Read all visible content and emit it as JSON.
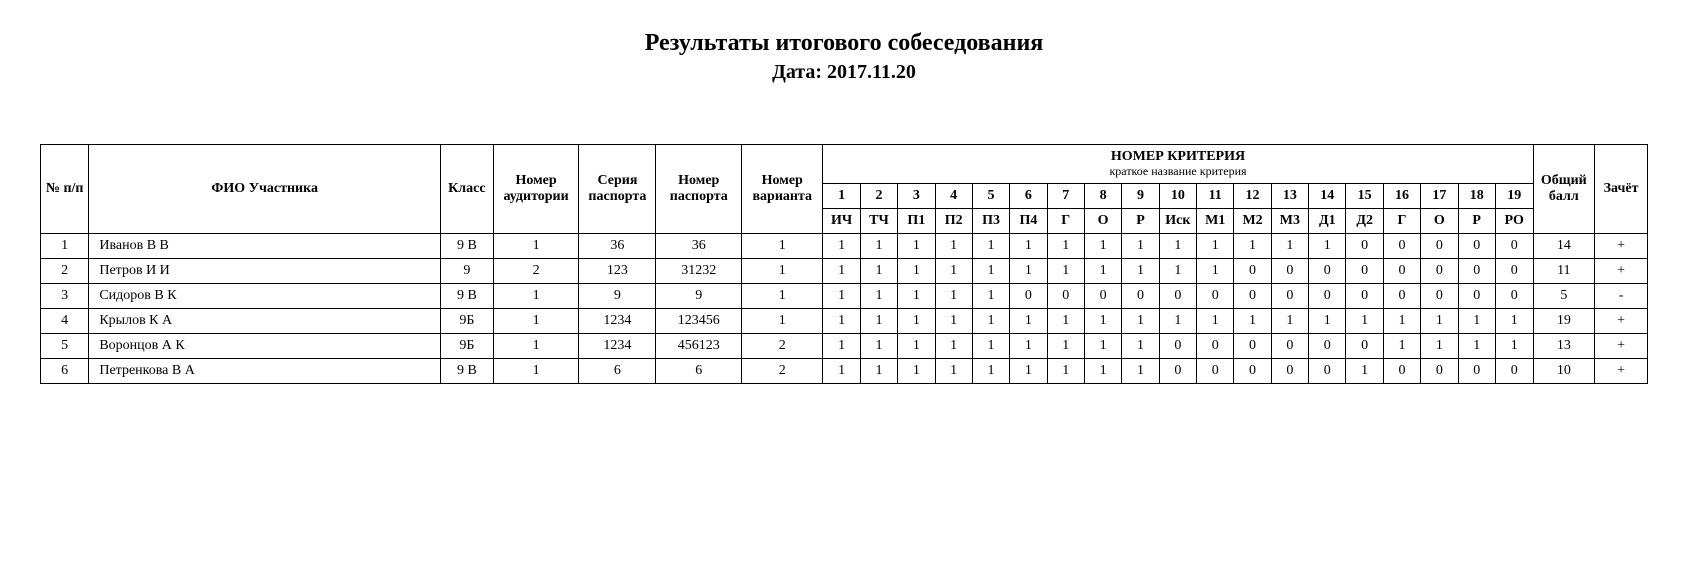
{
  "title": "Результаты итогового собеседования",
  "date_label": "Дата: 2017.11.20",
  "headers": {
    "num": "№ п/п",
    "fio": "ФИО Участника",
    "klass": "Класс",
    "room": "Номер аудитории",
    "pass_ser": "Серия паспорта",
    "pass_num": "Номер паспорта",
    "variant": "Номер варианта",
    "crit_title": "НОМЕР КРИТЕРИЯ",
    "crit_sub": "краткое название критерия",
    "total": "Общий балл",
    "pass": "Зачёт"
  },
  "crit_nums": [
    "1",
    "2",
    "3",
    "4",
    "5",
    "6",
    "7",
    "8",
    "9",
    "10",
    "11",
    "12",
    "13",
    "14",
    "15",
    "16",
    "17",
    "18",
    "19"
  ],
  "crit_names": [
    "ИЧ",
    "ТЧ",
    "П1",
    "П2",
    "П3",
    "П4",
    "Г",
    "О",
    "Р",
    "Иск",
    "М1",
    "М2",
    "М3",
    "Д1",
    "Д2",
    "Г",
    "О",
    "Р",
    "РО"
  ],
  "rows": [
    {
      "n": "1",
      "fio": "Иванов В В",
      "klass": "9 В",
      "room": "1",
      "ser": "36",
      "pnum": "36",
      "var": "1",
      "c": [
        "1",
        "1",
        "1",
        "1",
        "1",
        "1",
        "1",
        "1",
        "1",
        "1",
        "1",
        "1",
        "1",
        "1",
        "0",
        "0",
        "0",
        "0",
        "0"
      ],
      "total": "14",
      "pass": "+"
    },
    {
      "n": "2",
      "fio": "Петров И И",
      "klass": "9",
      "room": "2",
      "ser": "123",
      "pnum": "31232",
      "var": "1",
      "c": [
        "1",
        "1",
        "1",
        "1",
        "1",
        "1",
        "1",
        "1",
        "1",
        "1",
        "1",
        "0",
        "0",
        "0",
        "0",
        "0",
        "0",
        "0",
        "0"
      ],
      "total": "11",
      "pass": "+"
    },
    {
      "n": "3",
      "fio": "Сидоров В К",
      "klass": "9 В",
      "room": "1",
      "ser": "9",
      "pnum": "9",
      "var": "1",
      "c": [
        "1",
        "1",
        "1",
        "1",
        "1",
        "0",
        "0",
        "0",
        "0",
        "0",
        "0",
        "0",
        "0",
        "0",
        "0",
        "0",
        "0",
        "0",
        "0"
      ],
      "total": "5",
      "pass": "-"
    },
    {
      "n": "4",
      "fio": "Крылов К А",
      "klass": "9Б",
      "room": "1",
      "ser": "1234",
      "pnum": "123456",
      "var": "1",
      "c": [
        "1",
        "1",
        "1",
        "1",
        "1",
        "1",
        "1",
        "1",
        "1",
        "1",
        "1",
        "1",
        "1",
        "1",
        "1",
        "1",
        "1",
        "1",
        "1"
      ],
      "total": "19",
      "pass": "+"
    },
    {
      "n": "5",
      "fio": "Воронцов А К",
      "klass": "9Б",
      "room": "1",
      "ser": "1234",
      "pnum": "456123",
      "var": "2",
      "c": [
        "1",
        "1",
        "1",
        "1",
        "1",
        "1",
        "1",
        "1",
        "1",
        "0",
        "0",
        "0",
        "0",
        "0",
        "0",
        "1",
        "1",
        "1",
        "1"
      ],
      "total": "13",
      "pass": "+"
    },
    {
      "n": "6",
      "fio": "Петренкова В А",
      "klass": "9 В",
      "room": "1",
      "ser": "6",
      "pnum": "6",
      "var": "2",
      "c": [
        "1",
        "1",
        "1",
        "1",
        "1",
        "1",
        "1",
        "1",
        "1",
        "0",
        "0",
        "0",
        "0",
        "0",
        "1",
        "0",
        "0",
        "0",
        "0"
      ],
      "total": "10",
      "pass": "+"
    }
  ],
  "col_widths": {
    "num": 44,
    "fio": 320,
    "klass": 48,
    "room": 78,
    "ser": 70,
    "pnum": 78,
    "var": 74,
    "crit": 34,
    "total": 56,
    "pass": 48
  }
}
